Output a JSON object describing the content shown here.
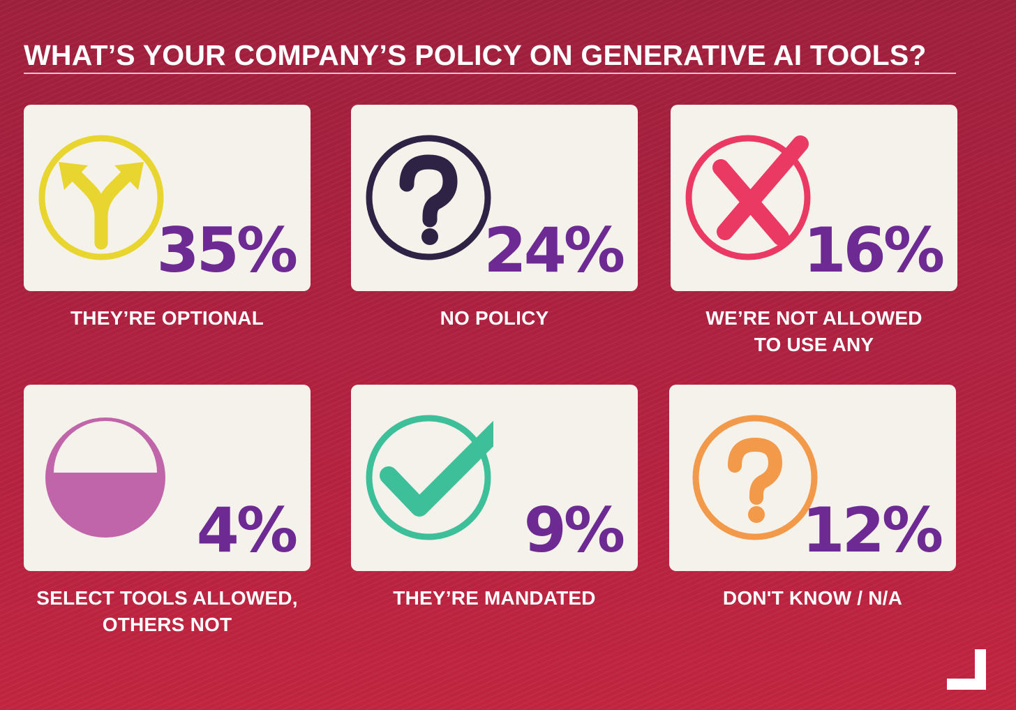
{
  "chart_data": {
    "type": "table",
    "title": "WHAT’S YOUR COMPANY’S POLICY ON GENERATIVE AI TOOLS?",
    "unit": "%",
    "items": [
      {
        "label": "THEY’RE OPTIONAL",
        "value": 35,
        "display": "35%",
        "icon": "diverging-arrows-icon",
        "icon_color": "#e9d530"
      },
      {
        "label": "NO POLICY",
        "value": 24,
        "display": "24%",
        "icon": "question-mark-icon",
        "icon_color": "#2e2344"
      },
      {
        "label": "WE’RE NOT ALLOWED\nTO USE ANY",
        "value": 16,
        "display": "16%",
        "icon": "x-mark-icon",
        "icon_color": "#ea3a63"
      },
      {
        "label": "SELECT TOOLS ALLOWED,\nOTHERS NOT",
        "value": 4,
        "display": "4%",
        "icon": "half-filled-circle-icon",
        "icon_color": "#c065a9"
      },
      {
        "label": "THEY’RE MANDATED",
        "value": 9,
        "display": "9%",
        "icon": "check-mark-icon",
        "icon_color": "#3dbf9a"
      },
      {
        "label": "DON'T KNOW / N/A",
        "value": 12,
        "display": "12%",
        "icon": "question-mark-icon",
        "icon_color": "#f2994a"
      }
    ]
  },
  "colors": {
    "background": "#b5233f",
    "card": "#f5f2ec",
    "percent_text": "#6d2a93",
    "label_text": "#ffffff"
  }
}
